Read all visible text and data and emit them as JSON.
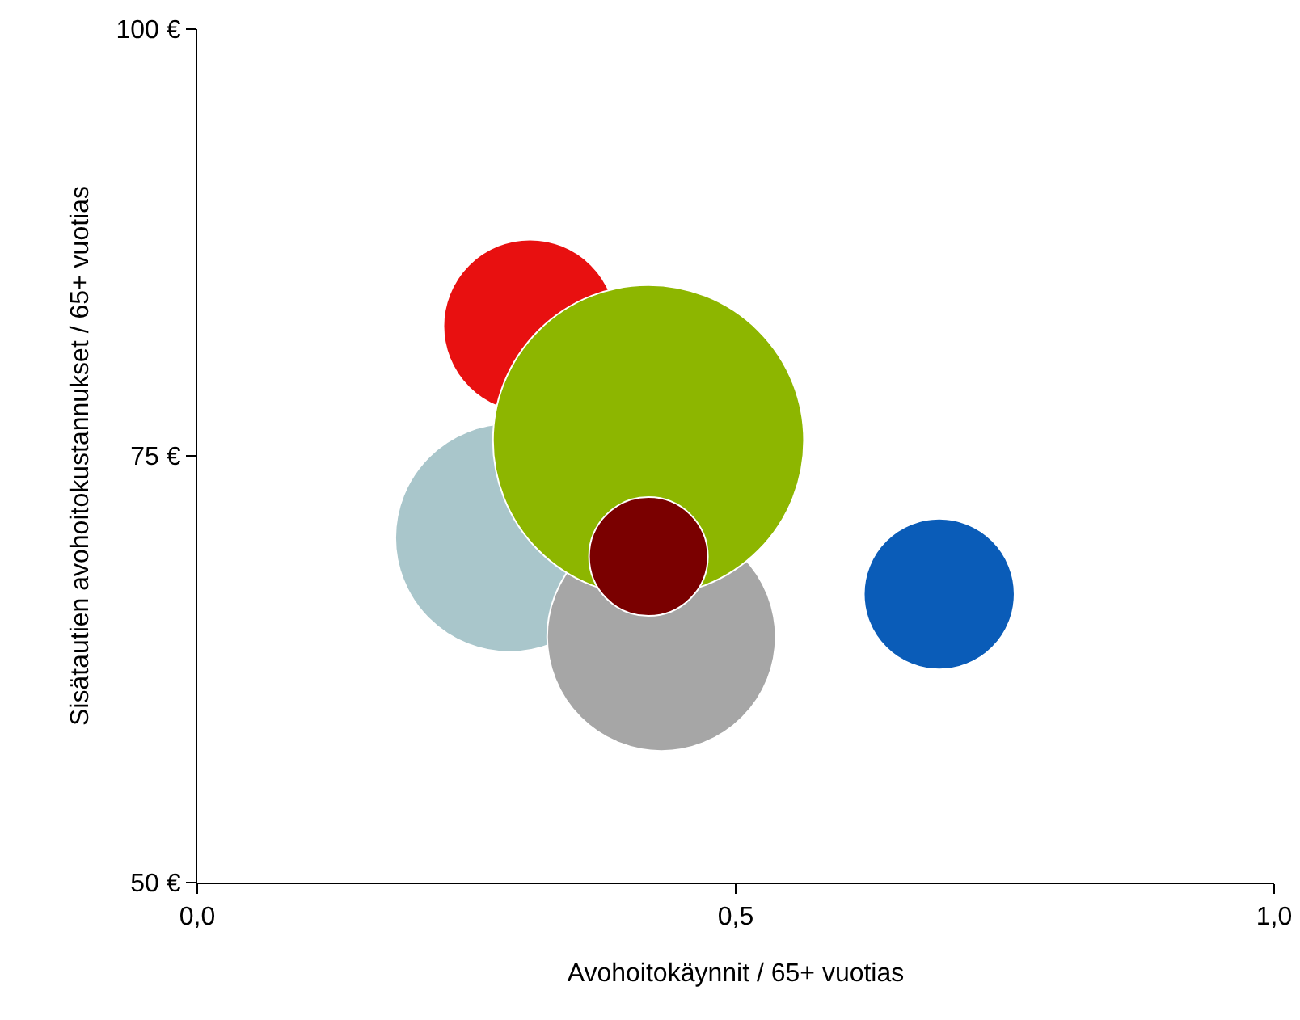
{
  "chart_data": {
    "type": "bubble",
    "xlabel": "Avohoitokäynnit / 65+ vuotias",
    "ylabel": "Sisätautien avohoitokustannukset / 65+ vuotias",
    "x": [
      0.29,
      0.431,
      0.309,
      0.419,
      0.419,
      0.689
    ],
    "values": [
      70.2,
      64.4,
      82.6,
      75.9,
      69.1,
      66.9
    ],
    "sizes": [
      0.54,
      0.54,
      0.31,
      1,
      0.146,
      0.235
    ],
    "colors": [
      "#a9c6cb",
      "#a6a6a6",
      "#e81010",
      "#8db600",
      "#7a0000",
      "#0a5cb8"
    ],
    "xlim": [
      0,
      1
    ],
    "xticks": [
      {
        "value": 0,
        "label": "0,0"
      },
      {
        "value": 0.5,
        "label": "0,5"
      },
      {
        "value": 1,
        "label": "1,0"
      }
    ],
    "ylim": [
      50,
      100
    ],
    "yticks": [
      {
        "value": 50,
        "label": "50 €"
      },
      {
        "value": 75,
        "label": "75 €"
      },
      {
        "value": 100,
        "label": "100 €"
      }
    ],
    "grid": false
  }
}
